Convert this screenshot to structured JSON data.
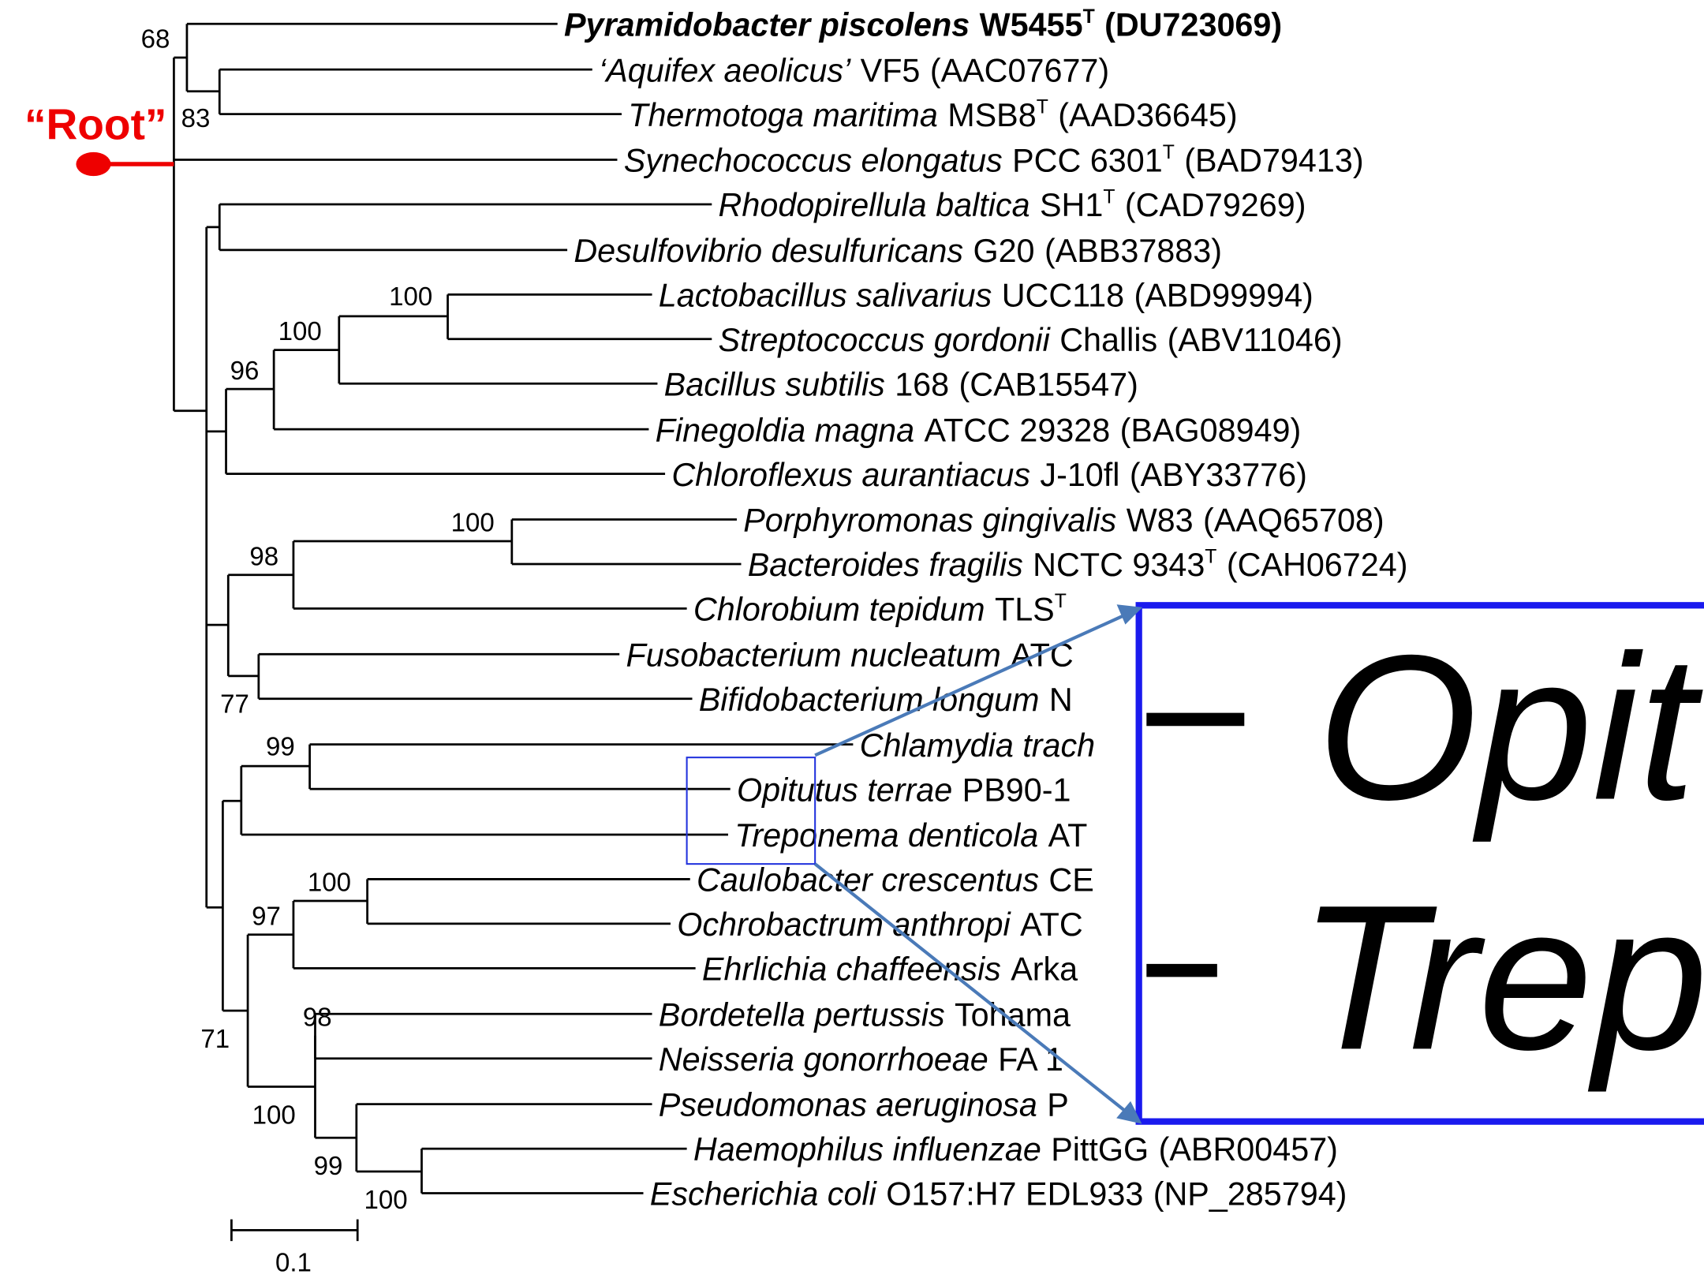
{
  "root_label": "“Root”",
  "leaves": [
    {
      "name": "Pyramidobacter piscolens",
      "strain": "W5455",
      "sup": "T",
      "accession": "(DU723069)"
    },
    {
      "name": "‘Aquifex aeolicus’",
      "strain": "VF5",
      "accession": "(AAC07677)"
    },
    {
      "name": "Thermotoga maritima",
      "strain": "MSB8",
      "sup": "T",
      "accession": "(AAD36645)"
    },
    {
      "name": "Synechococcus elongatus",
      "strain": "PCC 6301",
      "sup": "T",
      "accession": "(BAD79413)"
    },
    {
      "name": "Rhodopirellula baltica",
      "strain": "SH1",
      "sup": "T",
      "accession": "(CAD79269)"
    },
    {
      "name": "Desulfovibrio desulfuricans",
      "strain": "G20",
      "accession": "(ABB37883)"
    },
    {
      "name": "Lactobacillus salivarius",
      "strain": "UCC118",
      "accession": "(ABD99994)"
    },
    {
      "name": "Streptococcus gordonii",
      "strain": "Challis",
      "accession": "(ABV11046)"
    },
    {
      "name": "Bacillus subtilis",
      "strain": "168",
      "accession": "(CAB15547)"
    },
    {
      "name": "Finegoldia magna",
      "strain": "ATCC 29328",
      "accession": "(BAG08949)"
    },
    {
      "name": "Chloroflexus aurantiacus",
      "strain": "J-10fl",
      "accession": "(ABY33776)"
    },
    {
      "name": "Porphyromonas gingivalis",
      "strain": "W83",
      "accession": "(AAQ65708)"
    },
    {
      "name": "Bacteroides fragilis",
      "strain": "NCTC 9343",
      "sup": "T",
      "accession": "(CAH06724)"
    },
    {
      "name": "Chlorobium tepidum",
      "strain": "TLS",
      "sup": "T"
    },
    {
      "name": "Fusobacterium nucleatum",
      "strain": "ATC"
    },
    {
      "name": "Bifidobacterium longum",
      "strain": "N"
    },
    {
      "name": "Chlamydia trach"
    },
    {
      "name": "Opitutus terrae",
      "strain": "PB90-1"
    },
    {
      "name": "Treponema denticola",
      "strain": "AT"
    },
    {
      "name": "Caulobacter crescentus",
      "strain": "CE"
    },
    {
      "name": "Ochrobactrum anthropi",
      "strain": "ATC"
    },
    {
      "name": "Ehrlichia chaffeensis",
      "strain": "Arka"
    },
    {
      "name": "Bordetella pertussis",
      "strain": "Tohama"
    },
    {
      "name": "Neisseria gonorrhoeae",
      "strain": "FA 1"
    },
    {
      "name": "Pseudomonas aeruginosa",
      "strain": "P"
    },
    {
      "name": "Haemophilus influenzae",
      "strain": "PittGG",
      "accession": "(ABR00457)"
    },
    {
      "name": "Escherichia coli",
      "strain": "O157:H7 EDL933",
      "accession": "(NP_285794)"
    }
  ],
  "bootstrap": [
    68,
    83,
    100,
    100,
    96,
    100,
    98,
    77,
    99,
    100,
    97,
    98,
    71,
    100,
    99,
    100
  ],
  "scale_label": "0.1",
  "inset": {
    "line1": "Opit",
    "line2": "Trep"
  }
}
